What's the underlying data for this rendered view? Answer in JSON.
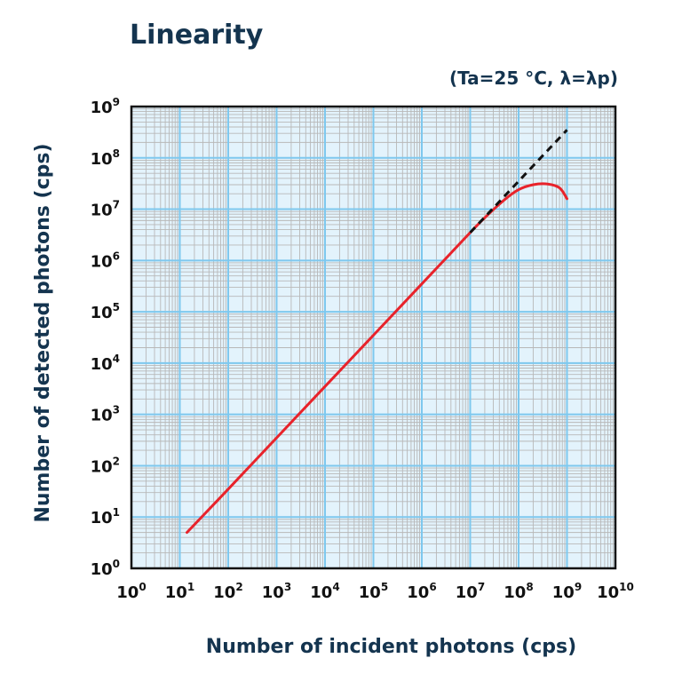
{
  "chart_data": {
    "type": "line",
    "title": "Linearity",
    "subtitle": "(Ta=25 °C, λ=λp)",
    "xlabel": "Number of incident photons (cps)",
    "ylabel": "Number of detected photons (cps)",
    "x_scale": "log",
    "y_scale": "log",
    "xlim": [
      1,
      10000000000
    ],
    "ylim": [
      1,
      1000000000
    ],
    "x_ticks": [
      {
        "base": "10",
        "exp": "0"
      },
      {
        "base": "10",
        "exp": "1"
      },
      {
        "base": "10",
        "exp": "2"
      },
      {
        "base": "10",
        "exp": "3"
      },
      {
        "base": "10",
        "exp": "4"
      },
      {
        "base": "10",
        "exp": "5"
      },
      {
        "base": "10",
        "exp": "6"
      },
      {
        "base": "10",
        "exp": "7"
      },
      {
        "base": "10",
        "exp": "8"
      },
      {
        "base": "10",
        "exp": "9"
      },
      {
        "base": "10",
        "exp": "10"
      }
    ],
    "y_ticks": [
      {
        "base": "10",
        "exp": "0"
      },
      {
        "base": "10",
        "exp": "1"
      },
      {
        "base": "10",
        "exp": "2"
      },
      {
        "base": "10",
        "exp": "3"
      },
      {
        "base": "10",
        "exp": "4"
      },
      {
        "base": "10",
        "exp": "5"
      },
      {
        "base": "10",
        "exp": "6"
      },
      {
        "base": "10",
        "exp": "7"
      },
      {
        "base": "10",
        "exp": "8"
      },
      {
        "base": "10",
        "exp": "9"
      }
    ],
    "grid": true,
    "series": [
      {
        "color": "#e8232b",
        "style": "solid",
        "x": [
          14,
          100,
          1000,
          10000,
          100000,
          1000000,
          10000000,
          20000000,
          50000000,
          100000000,
          200000000,
          400000000,
          700000000,
          1000000000
        ],
        "y": [
          5,
          35,
          350,
          3500,
          35000,
          350000,
          3500000,
          6800000,
          15000000,
          24000000,
          30000000,
          31000000,
          26000000,
          16000000
        ]
      },
      {
        "color": "#111111",
        "style": "dashed",
        "x": [
          10000000,
          1000000000
        ],
        "y": [
          3500000,
          350000000
        ]
      }
    ],
    "colors": {
      "plot_background": "#e3f3fc",
      "major_grid": "#7ec8ee",
      "minor_grid": "#b8b8b8",
      "frame": "#111111",
      "text_dark": "#14344f"
    }
  }
}
